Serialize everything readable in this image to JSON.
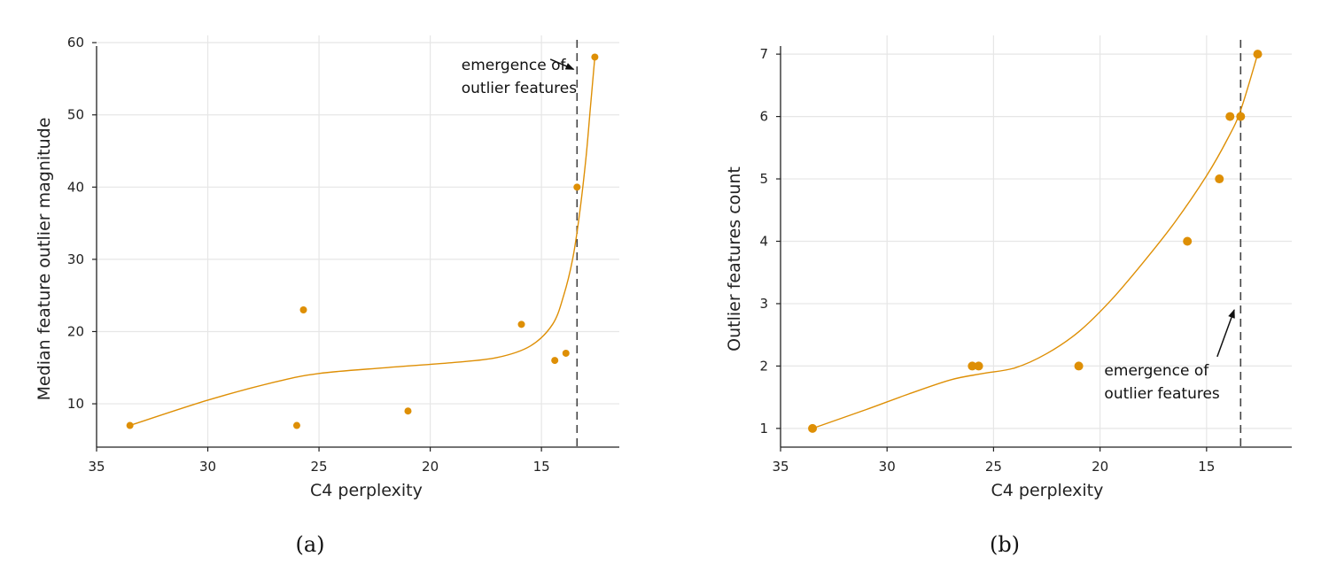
{
  "colors": {
    "point": "#de8f05",
    "fit": "#de8f05",
    "vline": "#444444",
    "grid": "#e6e6e6"
  },
  "chart_data": [
    {
      "type": "scatter",
      "caption": "(a)",
      "xlabel": "C4 perplexity",
      "ylabel": "Median feature outlier magnitude",
      "xlim": [
        35,
        11.5
      ],
      "ylim": [
        4,
        61
      ],
      "x_reversed": true,
      "xticks": [
        35,
        30,
        25,
        20,
        15
      ],
      "yticks": [
        10,
        20,
        30,
        40,
        50,
        60
      ],
      "grid": true,
      "points": [
        {
          "x": 33.5,
          "y": 7
        },
        {
          "x": 26.0,
          "y": 7
        },
        {
          "x": 25.7,
          "y": 23
        },
        {
          "x": 21.0,
          "y": 9
        },
        {
          "x": 15.9,
          "y": 21
        },
        {
          "x": 14.4,
          "y": 16
        },
        {
          "x": 13.9,
          "y": 17
        },
        {
          "x": 13.4,
          "y": 40
        },
        {
          "x": 12.6,
          "y": 58
        }
      ],
      "fit_curve": [
        {
          "x": 33.5,
          "y": 7
        },
        {
          "x": 30,
          "y": 10.5
        },
        {
          "x": 27,
          "y": 13
        },
        {
          "x": 25,
          "y": 14.2
        },
        {
          "x": 22,
          "y": 15
        },
        {
          "x": 19,
          "y": 15.7
        },
        {
          "x": 17,
          "y": 16.4
        },
        {
          "x": 15.5,
          "y": 18
        },
        {
          "x": 14.5,
          "y": 21
        },
        {
          "x": 14,
          "y": 25
        },
        {
          "x": 13.6,
          "y": 30
        },
        {
          "x": 13.3,
          "y": 36
        },
        {
          "x": 13.0,
          "y": 44
        },
        {
          "x": 12.8,
          "y": 51
        },
        {
          "x": 12.6,
          "y": 58
        }
      ],
      "vline_x": 13.4,
      "annotation": {
        "lines": [
          "emergence of",
          "outlier features"
        ],
        "text_at": {
          "x": 18.6,
          "y": 56.2
        },
        "arrow_from": {
          "x": 14.6,
          "y": 57.7
        },
        "arrow_to": {
          "x": 13.55,
          "y": 56.3
        }
      }
    },
    {
      "type": "scatter",
      "caption": "(b)",
      "xlabel": "C4 perplexity",
      "ylabel": "Outlier features count",
      "xlim": [
        35,
        11.0
      ],
      "ylim": [
        0.7,
        7.3
      ],
      "x_reversed": true,
      "xticks": [
        35,
        30,
        25,
        20,
        15
      ],
      "yticks": [
        1,
        2,
        3,
        4,
        5,
        6,
        7
      ],
      "grid": true,
      "points": [
        {
          "x": 33.5,
          "y": 1
        },
        {
          "x": 26.0,
          "y": 2
        },
        {
          "x": 25.7,
          "y": 2
        },
        {
          "x": 21.0,
          "y": 2
        },
        {
          "x": 15.9,
          "y": 4
        },
        {
          "x": 14.4,
          "y": 5
        },
        {
          "x": 13.9,
          "y": 6
        },
        {
          "x": 13.4,
          "y": 6
        },
        {
          "x": 12.6,
          "y": 7
        }
      ],
      "fit_curve": [
        {
          "x": 33.5,
          "y": 1
        },
        {
          "x": 31,
          "y": 1.3
        },
        {
          "x": 29,
          "y": 1.55
        },
        {
          "x": 27,
          "y": 1.78
        },
        {
          "x": 25.5,
          "y": 1.88
        },
        {
          "x": 24,
          "y": 1.97
        },
        {
          "x": 22.5,
          "y": 2.2
        },
        {
          "x": 21,
          "y": 2.55
        },
        {
          "x": 19.5,
          "y": 3.05
        },
        {
          "x": 18,
          "y": 3.65
        },
        {
          "x": 16.5,
          "y": 4.3
        },
        {
          "x": 15,
          "y": 5.05
        },
        {
          "x": 14,
          "y": 5.65
        },
        {
          "x": 13.4,
          "y": 6.1
        },
        {
          "x": 12.6,
          "y": 7
        }
      ],
      "vline_x": 13.4,
      "annotation": {
        "lines": [
          "emergence of",
          "outlier features"
        ],
        "text_at": {
          "x": 19.8,
          "y": 1.85
        },
        "arrow_from": {
          "x": 14.5,
          "y": 2.15
        },
        "arrow_to": {
          "x": 13.7,
          "y": 2.9
        }
      }
    }
  ]
}
